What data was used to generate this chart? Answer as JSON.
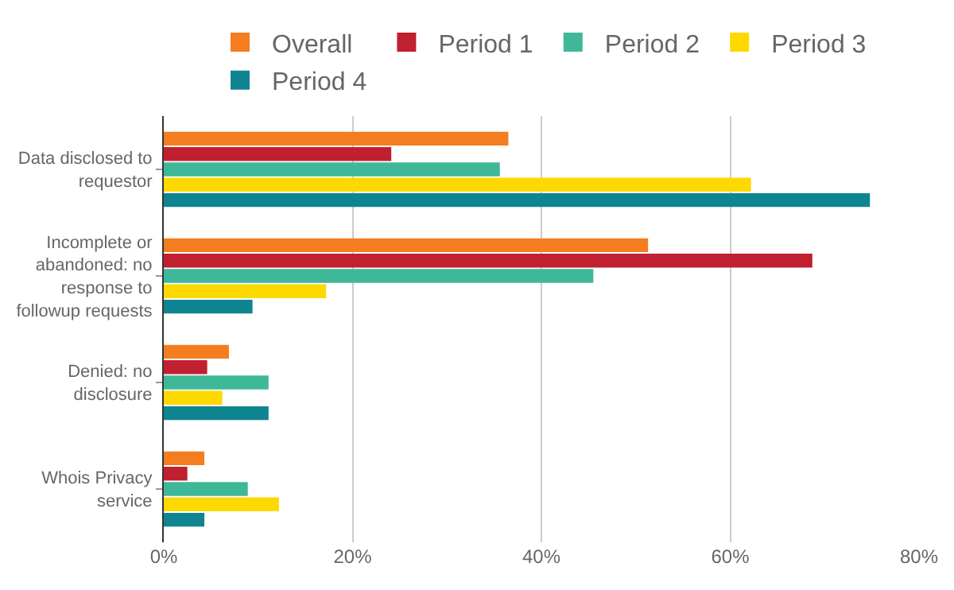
{
  "chart_data": {
    "type": "bar",
    "orientation": "horizontal",
    "categories": [
      "Data disclosed to\nrequestor",
      "Incomplete or\nabandoned: no\nresponse to\nfollowup requests",
      "Denied: no\ndisclosure",
      "Whois Privacy\nservice"
    ],
    "series": [
      {
        "name": "Overall",
        "color": "#f47d20",
        "values": [
          36.5,
          51.3,
          6.9,
          4.3
        ]
      },
      {
        "name": "Period 1",
        "color": "#c0202f",
        "values": [
          24.1,
          68.7,
          4.6,
          2.5
        ]
      },
      {
        "name": "Period 2",
        "color": "#3fb89a",
        "values": [
          35.6,
          45.5,
          11.1,
          8.9
        ]
      },
      {
        "name": "Period 3",
        "color": "#fdd900",
        "values": [
          62.2,
          17.2,
          6.2,
          12.2
        ]
      },
      {
        "name": "Period 4",
        "color": "#0e8590",
        "values": [
          74.8,
          9.4,
          11.1,
          4.3
        ]
      }
    ],
    "xlim": [
      0,
      80
    ],
    "xticks": [
      {
        "value": 0,
        "label": "0%"
      },
      {
        "value": 20,
        "label": "20%"
      },
      {
        "value": 40,
        "label": "40%"
      },
      {
        "value": 60,
        "label": "60%"
      },
      {
        "value": 80,
        "label": "80%"
      }
    ],
    "grid": "x",
    "legend": "top"
  }
}
